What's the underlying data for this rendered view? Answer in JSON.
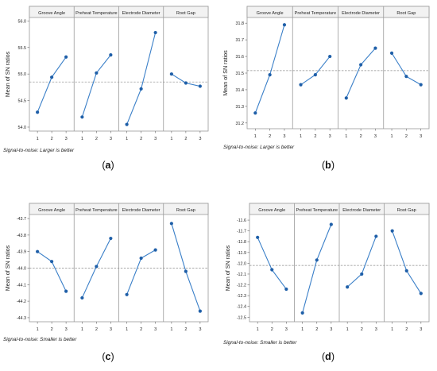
{
  "figure": {
    "panels": [
      {
        "id": "a",
        "caption": "(a)",
        "footnote": "Signal-to-noise: Larger is better"
      },
      {
        "id": "b",
        "caption": "(b)",
        "footnote": "Signal-to-noise: Larger is better"
      },
      {
        "id": "c",
        "caption": "(c)",
        "footnote": "Signal-to-noise: Smaller is better"
      },
      {
        "id": "d",
        "caption": "(d)",
        "footnote": "Signal-to-noise: Smaller is better"
      }
    ]
  },
  "chart_data": [
    {
      "type": "line",
      "panel": "a",
      "ylabel": "Mean of SN ratios",
      "facets": [
        "Groove Angle",
        "Preheat Temperature",
        "Electrode Diameter",
        "Root Gap"
      ],
      "x": [
        "1",
        "2",
        "3"
      ],
      "yticks": [
        54.0,
        54.5,
        55.0,
        55.5,
        56.0
      ],
      "ylim": [
        53.97,
        56.02
      ],
      "reference_line": 54.85,
      "series": [
        {
          "facet": "Groove Angle",
          "values": [
            54.28,
            54.94,
            55.32
          ]
        },
        {
          "facet": "Preheat Temperature",
          "values": [
            54.19,
            55.02,
            55.36
          ]
        },
        {
          "facet": "Electrode Diameter",
          "values": [
            54.05,
            54.72,
            55.78
          ]
        },
        {
          "facet": "Root Gap",
          "values": [
            55.0,
            54.83,
            54.77
          ]
        }
      ],
      "color": "#3a7fc8",
      "grid": false
    },
    {
      "type": "line",
      "panel": "b",
      "ylabel": "Mean of SN ratios",
      "facets": [
        "Groove Angle",
        "Preheat Temperature",
        "Electrode Diameter",
        "Root Gap"
      ],
      "x": [
        "1",
        "2",
        "3"
      ],
      "yticks": [
        31.2,
        31.3,
        31.4,
        31.5,
        31.6,
        31.7,
        31.8
      ],
      "ylim": [
        31.18,
        31.82
      ],
      "reference_line": 31.515,
      "series": [
        {
          "facet": "Groove Angle",
          "values": [
            31.26,
            31.49,
            31.79
          ]
        },
        {
          "facet": "Preheat Temperature",
          "values": [
            31.43,
            31.49,
            31.6
          ]
        },
        {
          "facet": "Electrode Diameter",
          "values": [
            31.35,
            31.55,
            31.65
          ]
        },
        {
          "facet": "Root Gap",
          "values": [
            31.62,
            31.48,
            31.43
          ]
        }
      ],
      "color": "#3a7fc8",
      "grid": false
    },
    {
      "type": "line",
      "panel": "c",
      "ylabel": "Mean of SN ratios",
      "facets": [
        "Groove Angle",
        "Preheat Temperature",
        "Electrode Diameter",
        "Root Gap"
      ],
      "x": [
        "1",
        "2",
        "3"
      ],
      "yticks": [
        -43.7,
        -43.8,
        -43.9,
        -44.0,
        -44.1,
        -44.2,
        -44.3
      ],
      "ylim": [
        -44.31,
        -43.69
      ],
      "reference_line": -44.0,
      "series": [
        {
          "facet": "Groove Angle",
          "values": [
            -43.9,
            -43.96,
            -44.14
          ]
        },
        {
          "facet": "Preheat Temperature",
          "values": [
            -44.18,
            -43.99,
            -43.82
          ]
        },
        {
          "facet": "Electrode Diameter",
          "values": [
            -44.16,
            -43.94,
            -43.89
          ]
        },
        {
          "facet": "Root Gap",
          "values": [
            -43.73,
            -44.02,
            -44.26
          ]
        }
      ],
      "color": "#3a7fc8",
      "grid": false
    },
    {
      "type": "line",
      "panel": "d",
      "ylabel": "Mean of SN ratios",
      "facets": [
        "Groove Angle",
        "Preheat Temperature",
        "Electrode Diameter",
        "Root Gap"
      ],
      "x": [
        "1",
        "2",
        "3"
      ],
      "yticks": [
        -11.6,
        -11.7,
        -11.8,
        -11.9,
        -12.0,
        -12.1,
        -12.2,
        -12.3,
        -12.4,
        -12.5
      ],
      "ylim": [
        -12.52,
        -11.57
      ],
      "reference_line": -12.02,
      "series": [
        {
          "facet": "Groove Angle",
          "values": [
            -11.76,
            -12.06,
            -12.24
          ]
        },
        {
          "facet": "Preheat Temperature",
          "values": [
            -12.46,
            -11.97,
            -11.64
          ]
        },
        {
          "facet": "Electrode Diameter",
          "values": [
            -12.22,
            -12.1,
            -11.75
          ]
        },
        {
          "facet": "Root Gap",
          "values": [
            -11.7,
            -12.07,
            -12.28
          ]
        }
      ],
      "color": "#3a7fc8",
      "grid": false
    }
  ]
}
